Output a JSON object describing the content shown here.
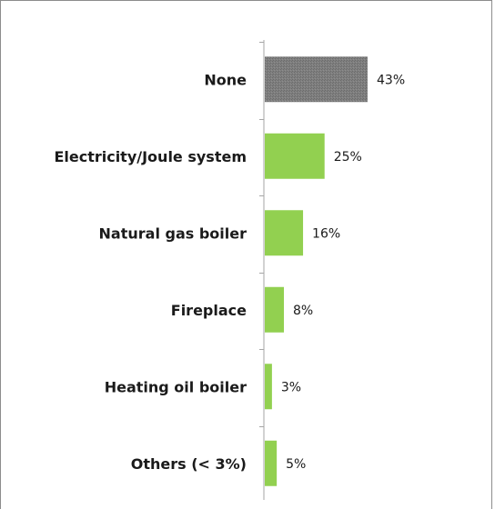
{
  "chart_data": {
    "type": "bar",
    "orientation": "horizontal",
    "categories": [
      "None",
      "Electricity/Joule system",
      "Natural gas boiler",
      "Fireplace",
      "Heating oil boiler",
      "Others (< 3%)"
    ],
    "values": [
      43,
      25,
      16,
      8,
      3,
      5
    ],
    "value_labels": [
      "43%",
      "25%",
      "16%",
      "8%",
      "3%",
      "5%"
    ],
    "unit": "%",
    "xlim": [
      0,
      100
    ],
    "grid": false,
    "legend": "none",
    "colors": {
      "highlight_bar": "#7a7a7a",
      "bars": "#92d050",
      "axis": "#a6a6a6",
      "frame": "#8c8c8c"
    },
    "bar_colors": [
      "highlight_bar",
      "bars",
      "bars",
      "bars",
      "bars",
      "bars"
    ]
  }
}
